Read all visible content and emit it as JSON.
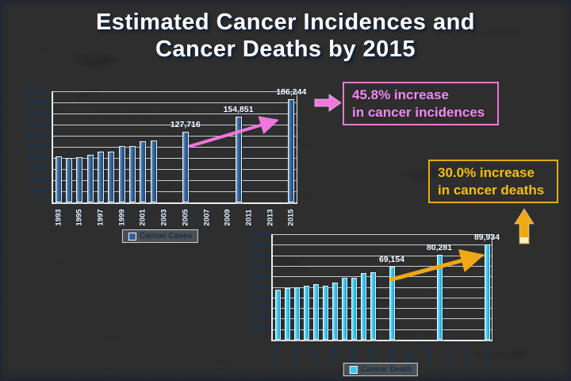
{
  "slide": {
    "title_line1": "Estimated Cancer Incidences and",
    "title_line2": "Cancer Deaths by 2015"
  },
  "colors": {
    "background_mid": "#50719a",
    "background_dark": "#2f4d72",
    "title_text": "#ffffff",
    "axis_label_dark": "#1a3350",
    "grid_line": "#eef4f9",
    "pink_accent": "#f18aec",
    "pink_arrow": "#ef76dd",
    "gold_accent": "#f2c011",
    "gold_arrow": "#f0a815",
    "gold_arrow_tip_band": "#fdf2c4"
  },
  "callouts": {
    "incidence": {
      "line1": "45.8% increase",
      "line2": "in cancer incidences"
    },
    "death": {
      "line1": "30.0% increase",
      "line2": "in cancer deaths"
    }
  },
  "chart_data": [
    {
      "id": "cancer-cases",
      "type": "bar",
      "legend": "Cancer Cases",
      "title": "",
      "xlabel": "",
      "ylabel": "",
      "ylim": [
        0,
        200000
      ],
      "ystep": 20000,
      "grid": true,
      "x_range": [
        1993,
        2015
      ],
      "x_tick_labels": [
        "1993",
        "1995",
        "1997",
        "1999",
        "2001",
        "2003",
        "2005",
        "2007",
        "2009",
        "2011",
        "2013",
        "2015"
      ],
      "tick_label_color": "#f4f8fc",
      "tick_label_light": true,
      "bar_color": "#31639b",
      "bar_color_light": "#85a8ca",
      "bar_color_dark": "#234c79",
      "bars": [
        {
          "x": 1993,
          "v": 83000
        },
        {
          "x": 1994,
          "v": 80000
        },
        {
          "x": 1995,
          "v": 82000
        },
        {
          "x": 1996,
          "v": 86000
        },
        {
          "x": 1997,
          "v": 91000
        },
        {
          "x": 1998,
          "v": 92000
        },
        {
          "x": 1999,
          "v": 101500
        },
        {
          "x": 2000,
          "v": 101000
        },
        {
          "x": 2001,
          "v": 109500
        },
        {
          "x": 2002,
          "v": 111500
        },
        {
          "x": 2005,
          "v": 127716,
          "label": "127,716"
        },
        {
          "x": 2010,
          "v": 154851,
          "label": "154,851"
        },
        {
          "x": 2015,
          "v": 186244,
          "label": "186,244"
        }
      ]
    },
    {
      "id": "cancer-death",
      "type": "bar",
      "legend": "Cancer Death",
      "title": "",
      "xlabel": "",
      "ylabel": "",
      "ylim": [
        0,
        100000
      ],
      "ystep": 10000,
      "grid": true,
      "x_range": [
        1993,
        2015
      ],
      "x_tick_labels": [
        "1993",
        "1995",
        "1997",
        "1999",
        "2001",
        "2003",
        "2005",
        "2007",
        "2009",
        "2011",
        "2013",
        "2015"
      ],
      "tick_label_color": "#1a3350",
      "tick_label_light": false,
      "bar_color": "#35c8f0",
      "bar_color_light": "#96e4fa",
      "bar_color_dark": "#1ba3d2",
      "bars": [
        {
          "x": 1993,
          "v": 47500
        },
        {
          "x": 1994,
          "v": 49000
        },
        {
          "x": 1995,
          "v": 50000
        },
        {
          "x": 1996,
          "v": 51000
        },
        {
          "x": 1997,
          "v": 52500
        },
        {
          "x": 1998,
          "v": 51500
        },
        {
          "x": 1999,
          "v": 54500
        },
        {
          "x": 2000,
          "v": 58500
        },
        {
          "x": 2001,
          "v": 59000
        },
        {
          "x": 2002,
          "v": 63500
        },
        {
          "x": 2003,
          "v": 64000
        },
        {
          "x": 2005,
          "v": 69154,
          "label": "69,154"
        },
        {
          "x": 2010,
          "v": 80281,
          "label": "80,281"
        },
        {
          "x": 2015,
          "v": 89934,
          "label": "89,934"
        }
      ]
    }
  ]
}
